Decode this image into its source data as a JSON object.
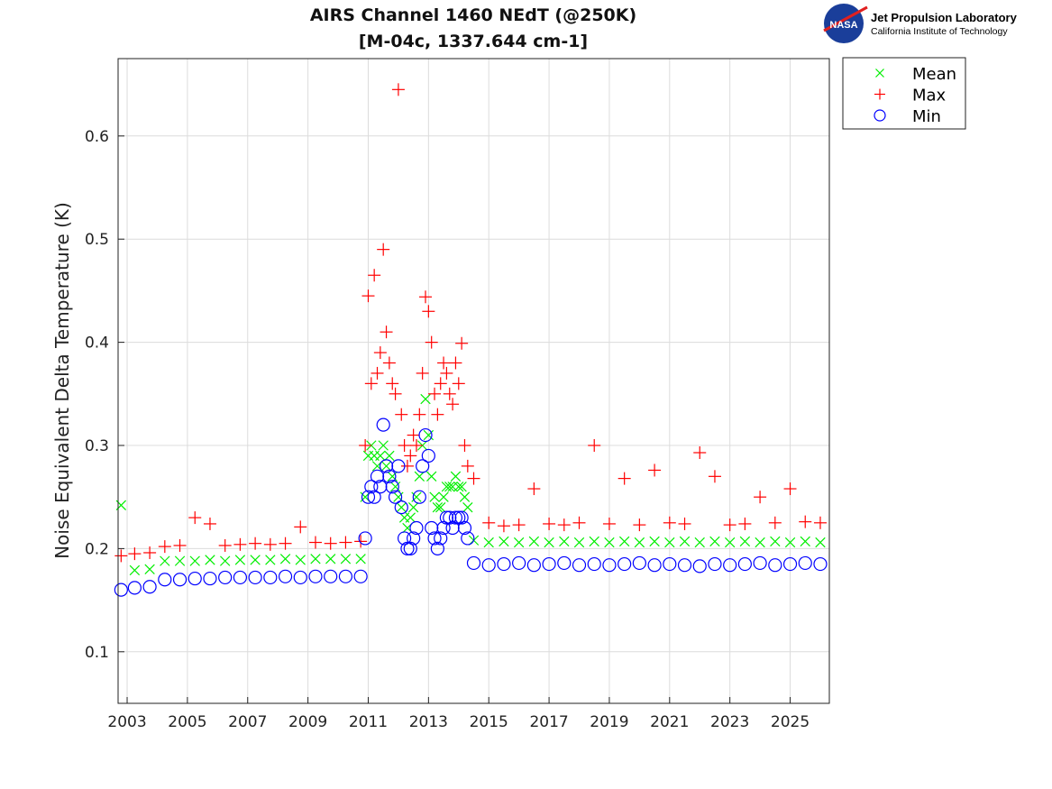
{
  "logo": {
    "org": "Jet Propulsion Laboratory",
    "sub": "California Institute of Technology",
    "badge": "NASA"
  },
  "chart_data": {
    "type": "scatter",
    "title": [
      "AIRS Channel 1460 NEdT (@250K)",
      "[M-04c, 1337.644 cm-1]"
    ],
    "xlabel": "",
    "ylabel": "Noise Equivalent Delta Temperature (K)",
    "xlim": [
      2002.7,
      2026.3
    ],
    "ylim": [
      0.05,
      0.675
    ],
    "xticks": [
      2003,
      2005,
      2007,
      2009,
      2011,
      2013,
      2015,
      2017,
      2019,
      2021,
      2023,
      2025
    ],
    "yticks": [
      0.1,
      0.2,
      0.3,
      0.4,
      0.5,
      0.6
    ],
    "grid": true,
    "legend_position": "outside-top-right",
    "x": [
      2002.8,
      2003.25,
      2003.75,
      2004.25,
      2004.75,
      2005.25,
      2005.75,
      2006.25,
      2006.75,
      2007.25,
      2007.75,
      2008.25,
      2008.75,
      2009.25,
      2009.75,
      2010.25,
      2010.75,
      2010.9,
      2011.0,
      2011.1,
      2011.2,
      2011.3,
      2011.4,
      2011.5,
      2011.6,
      2011.7,
      2011.8,
      2011.9,
      2012.0,
      2012.1,
      2012.2,
      2012.3,
      2012.4,
      2012.5,
      2012.6,
      2012.7,
      2012.8,
      2012.9,
      2013.0,
      2013.1,
      2013.2,
      2013.3,
      2013.4,
      2013.5,
      2013.6,
      2013.7,
      2013.8,
      2013.9,
      2014.0,
      2014.1,
      2014.2,
      2014.3,
      2014.5,
      2015.0,
      2015.5,
      2016.0,
      2016.5,
      2017.0,
      2017.5,
      2018.0,
      2018.5,
      2019.0,
      2019.5,
      2020.0,
      2020.5,
      2021.0,
      2021.5,
      2022.0,
      2022.5,
      2023.0,
      2023.5,
      2024.0,
      2024.5,
      2025.0,
      2025.5,
      2026.0
    ],
    "series": [
      {
        "name": "Mean",
        "marker": "x",
        "color": "#00ee00",
        "values": [
          0.242,
          0.179,
          0.18,
          0.188,
          0.188,
          0.188,
          0.189,
          0.188,
          0.189,
          0.189,
          0.189,
          0.19,
          0.189,
          0.19,
          0.19,
          0.19,
          0.19,
          0.25,
          0.29,
          0.3,
          0.29,
          0.28,
          0.29,
          0.3,
          0.28,
          0.29,
          0.27,
          0.26,
          0.25,
          0.24,
          0.23,
          0.22,
          0.23,
          0.24,
          0.25,
          0.27,
          0.3,
          0.345,
          0.31,
          0.27,
          0.25,
          0.24,
          0.24,
          0.25,
          0.26,
          0.26,
          0.26,
          0.27,
          0.26,
          0.26,
          0.25,
          0.24,
          0.208,
          0.206,
          0.207,
          0.206,
          0.207,
          0.206,
          0.207,
          0.206,
          0.207,
          0.206,
          0.207,
          0.206,
          0.207,
          0.206,
          0.207,
          0.206,
          0.207,
          0.206,
          0.207,
          0.206,
          0.207,
          0.206,
          0.207,
          0.206
        ]
      },
      {
        "name": "Max",
        "marker": "+",
        "color": "#ff0000",
        "values": [
          0.193,
          0.195,
          0.196,
          0.202,
          0.203,
          0.23,
          0.224,
          0.203,
          0.204,
          0.205,
          0.204,
          0.205,
          0.221,
          0.206,
          0.205,
          0.206,
          0.207,
          0.3,
          0.445,
          0.36,
          0.465,
          0.37,
          0.39,
          0.49,
          0.41,
          0.38,
          0.36,
          0.35,
          0.645,
          0.33,
          0.3,
          0.28,
          0.29,
          0.31,
          0.3,
          0.33,
          0.37,
          0.444,
          0.43,
          0.4,
          0.35,
          0.33,
          0.36,
          0.38,
          0.37,
          0.35,
          0.34,
          0.38,
          0.36,
          0.399,
          0.3,
          0.28,
          0.268,
          0.225,
          0.222,
          0.223,
          0.258,
          0.224,
          0.223,
          0.225,
          0.3,
          0.224,
          0.268,
          0.223,
          0.276,
          0.225,
          0.224,
          0.293,
          0.27,
          0.223,
          0.224,
          0.25,
          0.225,
          0.258,
          0.226,
          0.225
        ]
      },
      {
        "name": "Min",
        "marker": "o",
        "color": "#0000ff",
        "values": [
          0.16,
          0.162,
          0.163,
          0.17,
          0.17,
          0.171,
          0.171,
          0.172,
          0.172,
          0.172,
          0.172,
          0.173,
          0.172,
          0.173,
          0.173,
          0.173,
          0.173,
          0.21,
          0.25,
          0.26,
          0.25,
          0.27,
          0.26,
          0.32,
          0.28,
          0.27,
          0.26,
          0.25,
          0.28,
          0.24,
          0.21,
          0.2,
          0.2,
          0.21,
          0.22,
          0.25,
          0.28,
          0.31,
          0.29,
          0.22,
          0.21,
          0.2,
          0.21,
          0.22,
          0.23,
          0.23,
          0.22,
          0.23,
          0.23,
          0.23,
          0.22,
          0.21,
          0.186,
          0.184,
          0.185,
          0.186,
          0.184,
          0.185,
          0.186,
          0.184,
          0.185,
          0.184,
          0.185,
          0.186,
          0.184,
          0.185,
          0.184,
          0.183,
          0.185,
          0.184,
          0.185,
          0.186,
          0.184,
          0.185,
          0.186,
          0.185
        ]
      }
    ]
  }
}
